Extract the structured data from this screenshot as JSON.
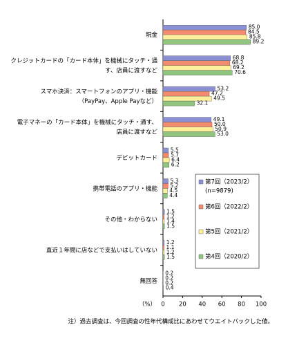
{
  "chart_data": {
    "type": "hbar",
    "categories": [
      "現金",
      "クレジットカードの「カード本体」を機械にタッチ・通\nす、店員に渡すなど",
      "スマホ決済：スマートフォンのアプリ・機能\n（PayPay、Apple Payなど）",
      "電子マネーの「カード本体」を機械にタッチ・通す、\n店員に渡すなど",
      "デビットカード",
      "携帯電話のアプリ・機能",
      "その他・わからない",
      "直近１年間に店などで支払いはしていない",
      "無回答"
    ],
    "series": [
      {
        "name": "第7回（2023/2）",
        "color": "#8b8fd3",
        "values": [
          85.0,
          68.8,
          53.2,
          49.1,
          5.5,
          5.3,
          1.5,
          1.2,
          0.2
        ],
        "value_labels": [
          "85.0",
          "68.8",
          "53.2",
          "49.1",
          "5.5",
          "5.3",
          "1.5",
          "1.2",
          "0.2"
        ]
      },
      {
        "name": "第6回（2022/2）",
        "color": "#f28b6f",
        "values": [
          84.5,
          68.2,
          47.2,
          50.0,
          5.7,
          5.2,
          1.2,
          1.1,
          0.2
        ],
        "value_labels": [
          "84.5",
          "68.2",
          "47.2",
          "50.0",
          "5.7",
          "5.2",
          "1.2",
          "1.1",
          "0.2"
        ]
      },
      {
        "name": "第5回（2021/2）",
        "color": "#fff09c",
        "values": [
          85.8,
          69.2,
          49.5,
          50.9,
          6.4,
          4.5,
          1.4,
          1.2,
          0.2
        ],
        "value_labels": [
          "85.8",
          "69.2",
          "49.5",
          "50.9",
          "6.4",
          "4.5",
          "1.4",
          "1.2",
          "0.2"
        ]
      },
      {
        "name": "第4回（2020/2）",
        "color": "#8fc57f",
        "values": [
          89.2,
          70.6,
          32.1,
          53.0,
          6.2,
          4.4,
          1.5,
          1.5,
          0.4
        ],
        "value_labels": [
          "89.2",
          "70.6",
          "32.1",
          "53.0",
          "6.2",
          "4.4",
          "1.5",
          "1.5",
          "0.4"
        ]
      }
    ],
    "legend_note": "(n=9879)",
    "xlim": [
      0,
      100
    ],
    "xticks": [
      0,
      20,
      40,
      60,
      80,
      100
    ],
    "x_unit": "（%）",
    "footnote": "注）過去調査は、今回調査の性年代構成比にあわせてウエイトバックした値。"
  }
}
